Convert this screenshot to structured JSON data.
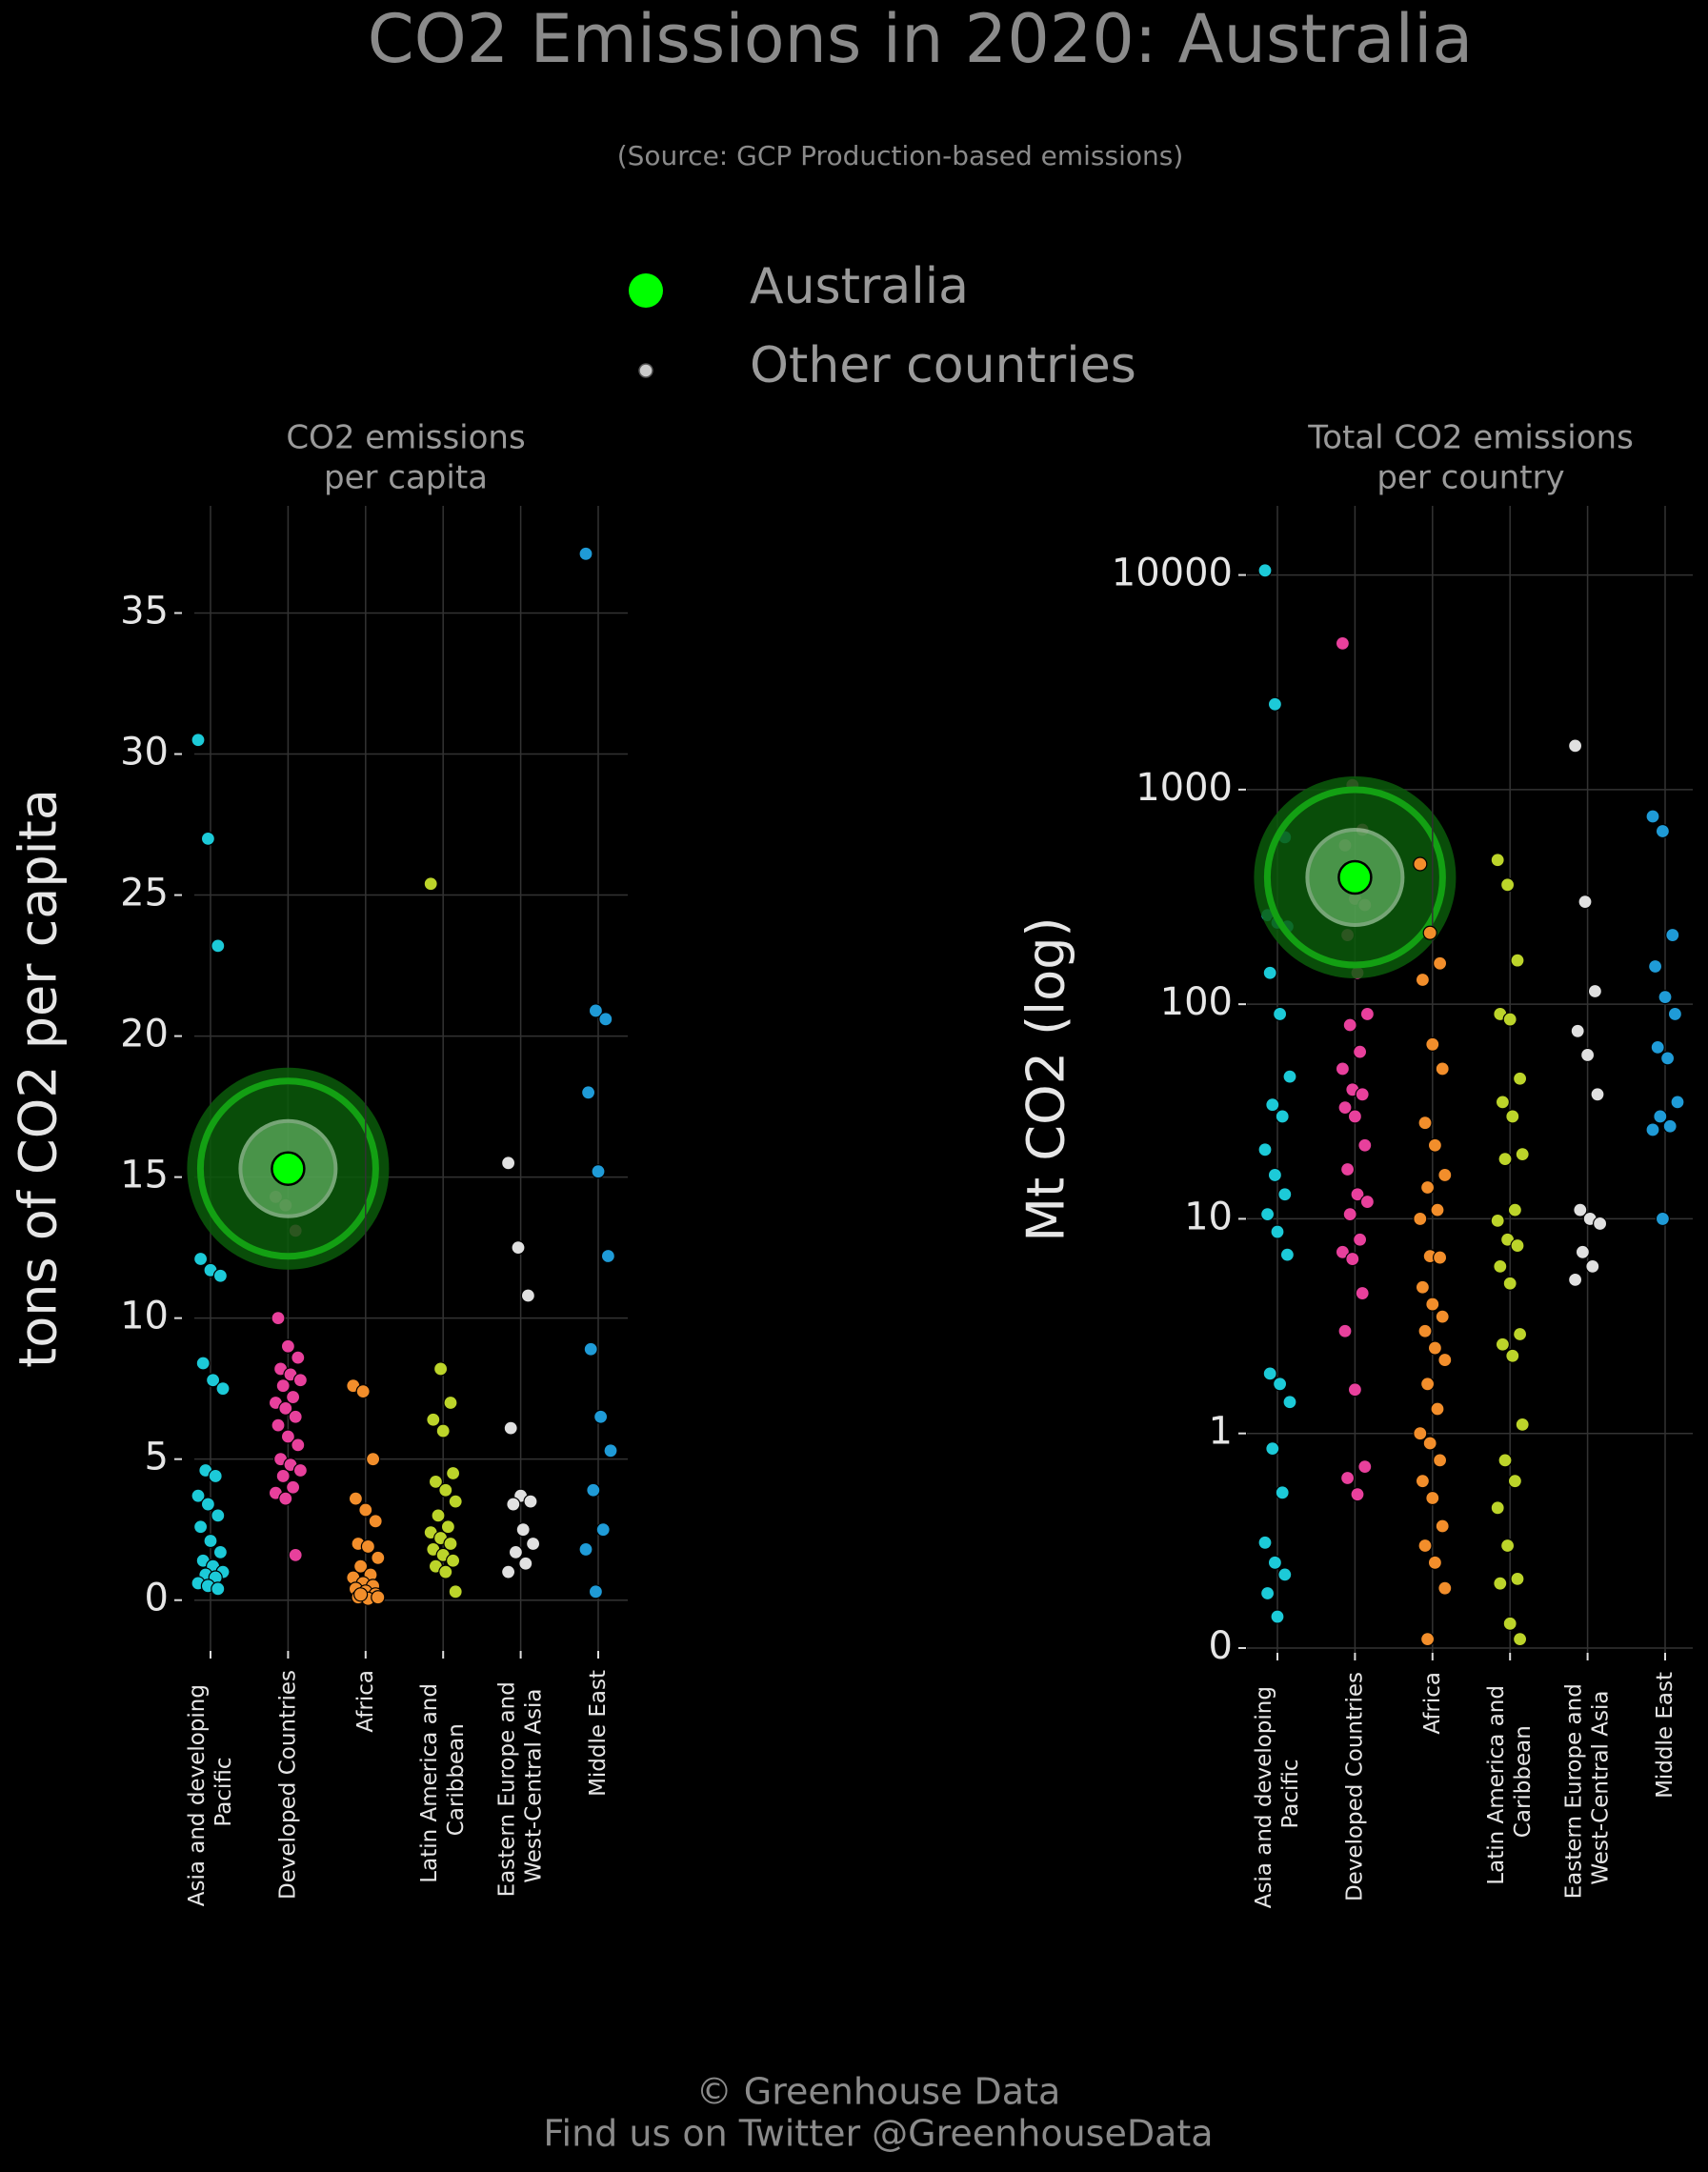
{
  "title": "CO2 Emissions in 2020: Australia",
  "subtitle": "(Source: GCP Production-based emissions)",
  "legend": [
    {
      "name": "Australia",
      "color": "#00ff00"
    },
    {
      "name": "Other countries",
      "color": "#cccccc"
    }
  ],
  "footer": [
    "© Greenhouse Data",
    "Find us on Twitter @GreenhouseData"
  ],
  "chart_data": [
    {
      "type": "strip",
      "title": [
        "CO2 emissions",
        "per capita"
      ],
      "ylabel": "tons of CO2 per capita",
      "log": false,
      "grid": true,
      "ylim": [
        -1.8,
        38.8
      ],
      "yticks": [
        0,
        5,
        10,
        15,
        20,
        25,
        30,
        35
      ],
      "categories": [
        "Asia and developing Pacific",
        "Developed Countries",
        "Africa",
        "Latin America and Caribbean",
        "Eastern Europe and West-Central Asia",
        "Middle East"
      ],
      "series": [
        {
          "color": "#1ccad8",
          "values": [
            30.5,
            27,
            23.2,
            12.1,
            11.7,
            11.5,
            8.4,
            7.8,
            7.5,
            4.6,
            4.4,
            3.7,
            3.4,
            3.0,
            2.6,
            2.1,
            1.7,
            1.4,
            1.2,
            1.0,
            0.9,
            0.8,
            0.6,
            0.5,
            0.4
          ]
        },
        {
          "color": "#e8409c",
          "highlight": 15.3,
          "values": [
            14.3,
            14.0,
            13.1,
            10.0,
            9.0,
            8.6,
            8.2,
            8.0,
            7.8,
            7.6,
            7.2,
            7.0,
            6.8,
            6.5,
            6.2,
            5.8,
            5.5,
            5.0,
            4.8,
            4.6,
            4.4,
            4.0,
            3.8,
            3.6,
            1.6
          ]
        },
        {
          "color": "#f28e2b",
          "values": [
            7.6,
            7.4,
            5.0,
            3.6,
            3.2,
            2.8,
            2.0,
            1.9,
            1.5,
            1.2,
            0.9,
            0.8,
            0.6,
            0.5,
            0.4,
            0.3,
            0.2,
            0.1,
            0.05,
            0.1,
            0.2
          ]
        },
        {
          "color": "#bcd42a",
          "values": [
            25.4,
            8.2,
            7.0,
            6.4,
            6.0,
            4.5,
            4.2,
            3.9,
            3.5,
            3.0,
            2.6,
            2.4,
            2.2,
            2.0,
            1.8,
            1.6,
            1.4,
            1.2,
            1.0,
            0.3
          ]
        },
        {
          "color": "#e0e0e0",
          "values": [
            15.5,
            12.5,
            10.8,
            6.1,
            3.7,
            3.5,
            3.4,
            2.5,
            2.0,
            1.7,
            1.3,
            1.0
          ]
        },
        {
          "color": "#1f9bd7",
          "values": [
            37.1,
            20.9,
            20.6,
            18.0,
            15.2,
            12.2,
            8.9,
            6.5,
            5.3,
            3.9,
            2.5,
            1.8,
            0.3
          ]
        }
      ]
    },
    {
      "type": "strip",
      "title": [
        "Total CO2 emissions",
        "per country"
      ],
      "ylabel": "Mt CO2 (log)",
      "log": true,
      "grid": true,
      "ylim": [
        0.095,
        21000
      ],
      "yticks": [
        {
          "value": 0.1,
          "label": "0"
        },
        1,
        10,
        100,
        1000,
        10000
      ],
      "categories": [
        "Asia and developing Pacific",
        "Developed Countries",
        "Africa",
        "Latin America and Caribbean",
        "Eastern Europe and West-Central Asia",
        "Middle East"
      ],
      "series": [
        {
          "color": "#1ccad8",
          "values": [
            10500,
            2500,
            600,
            260,
            240,
            230,
            140,
            90,
            46,
            34,
            30,
            21,
            16,
            13,
            10.5,
            8.7,
            6.8,
            1.9,
            1.7,
            1.4,
            0.85,
            0.53,
            0.31,
            0.25,
            0.22,
            0.18,
            0.14
          ]
        },
        {
          "color": "#e8409c",
          "highlight": 390,
          "values": [
            4800,
            1050,
            650,
            550,
            310,
            290,
            210,
            140,
            90,
            80,
            60,
            50,
            40,
            38,
            33,
            30,
            22,
            17,
            13,
            12,
            10.5,
            8,
            7,
            6.5,
            4.5,
            3,
            1.6,
            0.7,
            0.62,
            0.52
          ]
        },
        {
          "color": "#f28e2b",
          "values": [
            450,
            215,
            155,
            130,
            65,
            50,
            28,
            22,
            16,
            14,
            11,
            10,
            6.7,
            6.6,
            4.8,
            4,
            3.5,
            3,
            2.5,
            2.2,
            1.7,
            1.3,
            1.0,
            0.9,
            0.75,
            0.6,
            0.5,
            0.37,
            0.3,
            0.25,
            0.19,
            0.11
          ]
        },
        {
          "color": "#bcd42a",
          "values": [
            470,
            360,
            160,
            90,
            85,
            45,
            35,
            30,
            20,
            19,
            11,
            9.8,
            8,
            7.5,
            6,
            5,
            2.9,
            2.6,
            2.3,
            1.1,
            0.75,
            0.6,
            0.45,
            0.3,
            0.21,
            0.2,
            0.13,
            0.11
          ]
        },
        {
          "color": "#e0e0e0",
          "values": [
            1600,
            300,
            115,
            75,
            58,
            38,
            11,
            10,
            9.5,
            7,
            6,
            5.2
          ]
        },
        {
          "color": "#1f9bd7",
          "values": [
            750,
            640,
            210,
            150,
            108,
            90,
            63,
            56,
            35,
            30,
            27,
            26,
            10
          ]
        }
      ]
    }
  ]
}
